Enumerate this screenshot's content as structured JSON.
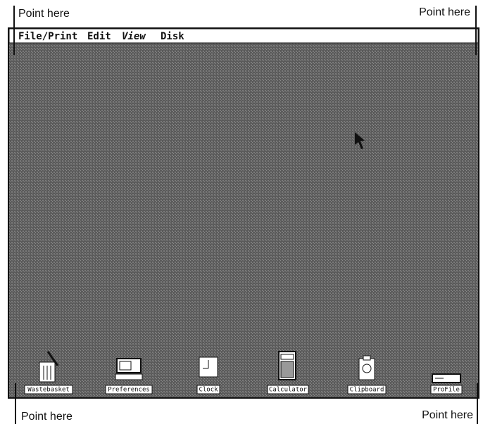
{
  "annotations": [
    "Point here",
    "Point here",
    "Point here",
    "Point here"
  ],
  "menu": [
    "File/Print",
    "Edit",
    "View",
    "Disk"
  ],
  "icons": [
    {
      "label": "Wastebasket"
    },
    {
      "label": "Preferences"
    },
    {
      "label": "Clock"
    },
    {
      "label": "Calculator"
    },
    {
      "label": "Clipboard"
    },
    {
      "label": "ProFile"
    }
  ]
}
